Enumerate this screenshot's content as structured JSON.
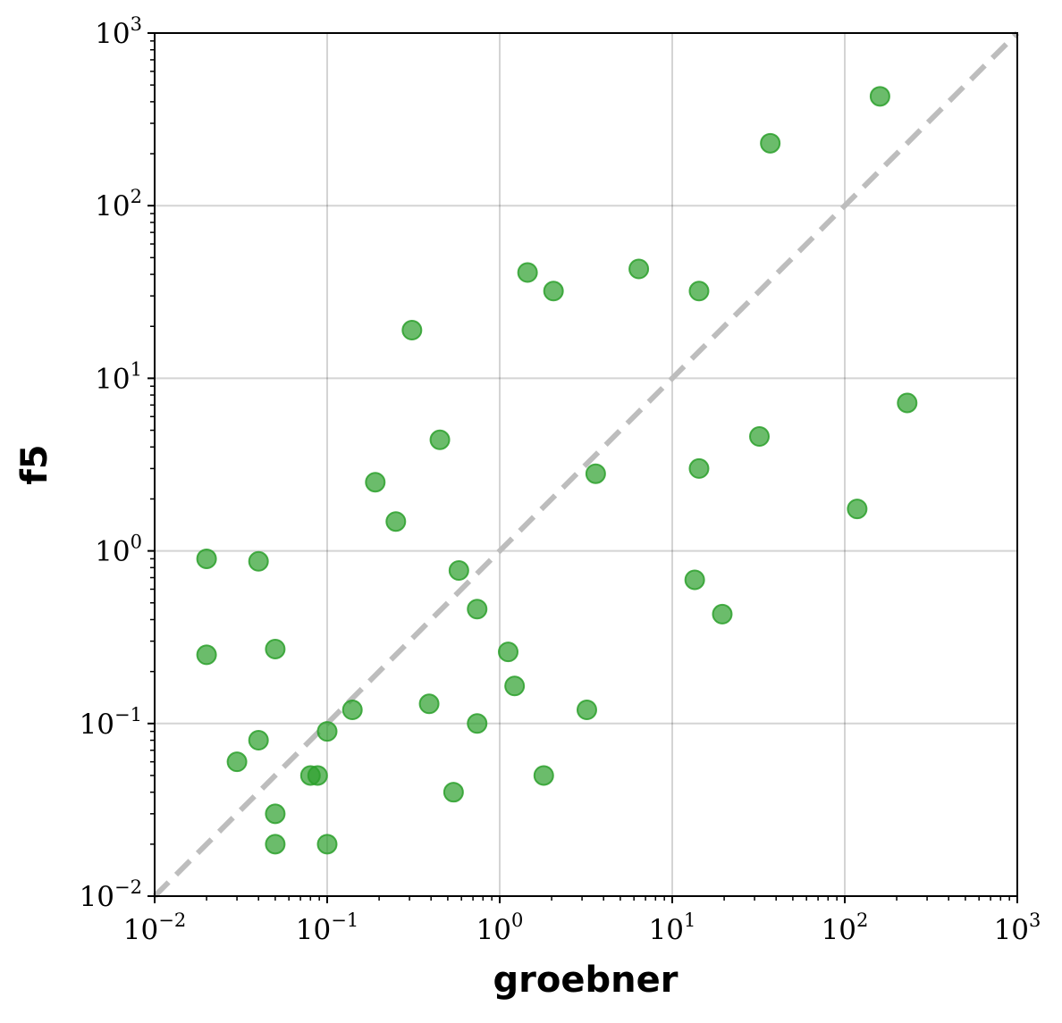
{
  "chart_data": {
    "type": "scatter",
    "title": "",
    "xlabel": "groebner",
    "ylabel": "f5",
    "xscale": "log",
    "yscale": "log",
    "xlim": [
      0.01,
      1000
    ],
    "ylim": [
      0.01,
      1000
    ],
    "grid": true,
    "legend": "none",
    "ticks": [
      {
        "base": "10",
        "exp": "−2",
        "value": 0.01
      },
      {
        "base": "10",
        "exp": "−1",
        "value": 0.1
      },
      {
        "base": "10",
        "exp": "0",
        "value": 1
      },
      {
        "base": "10",
        "exp": "1",
        "value": 10
      },
      {
        "base": "10",
        "exp": "2",
        "value": 100
      },
      {
        "base": "10",
        "exp": "3",
        "value": 1000
      }
    ],
    "reference_line": {
      "style": "dashed",
      "color": "#bdbdbd",
      "from": [
        0.01,
        0.01
      ],
      "to": [
        1000,
        1000
      ]
    },
    "marker_color": "#2ca02c",
    "series": [
      {
        "points": [
          [
            160,
            430
          ],
          [
            37,
            230
          ],
          [
            1.45,
            41
          ],
          [
            2.05,
            32
          ],
          [
            6.4,
            43
          ],
          [
            14.3,
            32
          ],
          [
            0.31,
            19
          ],
          [
            230,
            7.2
          ],
          [
            32,
            4.6
          ],
          [
            0.45,
            4.4
          ],
          [
            14.3,
            3.0
          ],
          [
            3.6,
            2.8
          ],
          [
            0.19,
            2.5
          ],
          [
            0.25,
            1.48
          ],
          [
            118,
            1.75
          ],
          [
            0.02,
            0.9
          ],
          [
            0.04,
            0.87
          ],
          [
            0.58,
            0.77
          ],
          [
            13.5,
            0.68
          ],
          [
            0.74,
            0.46
          ],
          [
            19.5,
            0.43
          ],
          [
            0.05,
            0.27
          ],
          [
            0.02,
            0.25
          ],
          [
            1.12,
            0.26
          ],
          [
            1.22,
            0.165
          ],
          [
            0.14,
            0.12
          ],
          [
            0.39,
            0.13
          ],
          [
            3.2,
            0.12
          ],
          [
            0.74,
            0.1
          ],
          [
            0.1,
            0.09
          ],
          [
            0.04,
            0.08
          ],
          [
            0.03,
            0.06
          ],
          [
            0.08,
            0.05
          ],
          [
            0.088,
            0.05
          ],
          [
            1.8,
            0.05
          ],
          [
            0.54,
            0.04
          ],
          [
            0.05,
            0.03
          ],
          [
            0.05,
            0.02
          ],
          [
            0.1,
            0.02
          ]
        ]
      }
    ]
  }
}
